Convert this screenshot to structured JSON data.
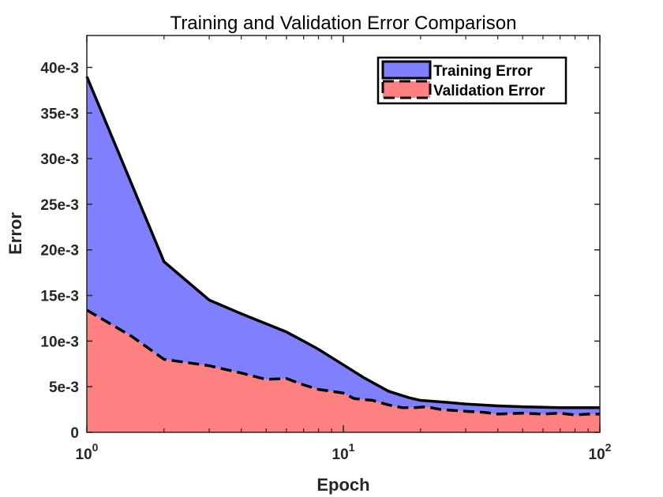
{
  "chart_data": {
    "type": "area",
    "title": "Training and Validation Error Comparison",
    "xlabel": "Epoch",
    "ylabel": "Error",
    "xscale": "log",
    "xlim": [
      1,
      100
    ],
    "ylim": [
      0,
      0.0435
    ],
    "xticks": [
      {
        "value": 1,
        "base": "10",
        "exp": "0"
      },
      {
        "value": 10,
        "base": "10",
        "exp": "1"
      },
      {
        "value": 100,
        "base": "10",
        "exp": "2"
      }
    ],
    "yticks": [
      {
        "value": 0,
        "label": "0"
      },
      {
        "value": 0.005,
        "label": "5e-3"
      },
      {
        "value": 0.01,
        "label": "10e-3"
      },
      {
        "value": 0.015,
        "label": "15e-3"
      },
      {
        "value": 0.02,
        "label": "20e-3"
      },
      {
        "value": 0.025,
        "label": "25e-3"
      },
      {
        "value": 0.03,
        "label": "30e-3"
      },
      {
        "value": 0.035,
        "label": "35e-3"
      },
      {
        "value": 0.04,
        "label": "40e-3"
      }
    ],
    "legend_position": "top-right",
    "series": [
      {
        "name": "Training Error",
        "fill": "#8080ff",
        "line_style": "solid",
        "points": [
          [
            1,
            0.039
          ],
          [
            2,
            0.0187
          ],
          [
            3,
            0.0145
          ],
          [
            4,
            0.013
          ],
          [
            5,
            0.0119
          ],
          [
            6,
            0.011
          ],
          [
            7,
            0.01
          ],
          [
            8,
            0.0091
          ],
          [
            9,
            0.0082
          ],
          [
            10,
            0.0074
          ],
          [
            12,
            0.006
          ],
          [
            15,
            0.0045
          ],
          [
            18,
            0.0038
          ],
          [
            20,
            0.0035
          ],
          [
            25,
            0.0033
          ],
          [
            30,
            0.0031
          ],
          [
            40,
            0.0029
          ],
          [
            50,
            0.0028
          ],
          [
            70,
            0.0027
          ],
          [
            100,
            0.0027
          ]
        ]
      },
      {
        "name": "Validation Error",
        "fill": "#ff8080",
        "line_style": "dashed",
        "points": [
          [
            1,
            0.0134
          ],
          [
            1.5,
            0.0105
          ],
          [
            2,
            0.008
          ],
          [
            3,
            0.0073
          ],
          [
            4,
            0.0065
          ],
          [
            5,
            0.0058
          ],
          [
            6,
            0.0059
          ],
          [
            7,
            0.0052
          ],
          [
            8,
            0.0047
          ],
          [
            9,
            0.0045
          ],
          [
            10,
            0.0043
          ],
          [
            11,
            0.0037
          ],
          [
            13,
            0.0035
          ],
          [
            15,
            0.003
          ],
          [
            17,
            0.0027
          ],
          [
            19,
            0.0027
          ],
          [
            21,
            0.0028
          ],
          [
            24,
            0.0025
          ],
          [
            30,
            0.0023
          ],
          [
            35,
            0.0022
          ],
          [
            40,
            0.002
          ],
          [
            50,
            0.0021
          ],
          [
            60,
            0.002
          ],
          [
            70,
            0.0021
          ],
          [
            80,
            0.0019
          ],
          [
            90,
            0.002
          ],
          [
            100,
            0.002
          ]
        ]
      }
    ]
  }
}
